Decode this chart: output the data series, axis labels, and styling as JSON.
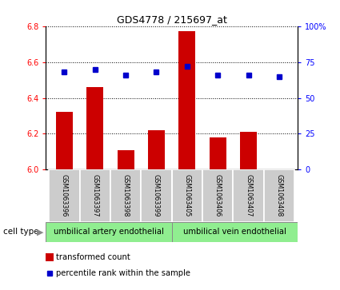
{
  "title": "GDS4778 / 215697_at",
  "samples": [
    "GSM1063396",
    "GSM1063397",
    "GSM1063398",
    "GSM1063399",
    "GSM1063405",
    "GSM1063406",
    "GSM1063407",
    "GSM1063408"
  ],
  "red_values": [
    6.32,
    6.46,
    6.11,
    6.22,
    6.77,
    6.18,
    6.21,
    6.0
  ],
  "blue_values": [
    68,
    70,
    66,
    68,
    72,
    66,
    66,
    65
  ],
  "ylim_left": [
    6.0,
    6.8
  ],
  "ylim_right": [
    0,
    100
  ],
  "yticks_left": [
    6.0,
    6.2,
    6.4,
    6.6,
    6.8
  ],
  "yticks_right": [
    0,
    25,
    50,
    75,
    100
  ],
  "group1_label": "umbilical artery endothelial",
  "group2_label": "umbilical vein endothelial",
  "cell_type_label": "cell type",
  "legend_red": "transformed count",
  "legend_blue": "percentile rank within the sample",
  "bar_color": "#cc0000",
  "dot_color": "#0000cc",
  "group_bg_color": "#90ee90",
  "sample_bg_color": "#cccccc",
  "bar_base": 6.0,
  "bar_width": 0.55
}
